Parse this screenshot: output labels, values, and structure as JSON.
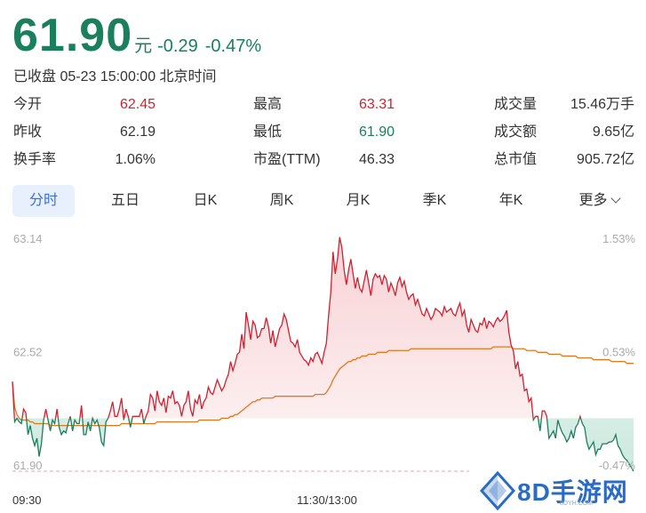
{
  "header": {
    "price": "61.90",
    "unit": "元",
    "change": "-0.29",
    "change_pct": "-0.47%",
    "status": "已收盘 05-23 15:00:00 北京时间"
  },
  "stats": [
    {
      "label": "今开",
      "value": "62.45",
      "color": "red"
    },
    {
      "label": "最高",
      "value": "63.31",
      "color": "red"
    },
    {
      "label": "成交量",
      "value": "15.46万手",
      "color": "neutral"
    },
    {
      "label": "昨收",
      "value": "62.19",
      "color": "neutral"
    },
    {
      "label": "最低",
      "value": "61.90",
      "color": "green"
    },
    {
      "label": "成交额",
      "value": "9.65亿",
      "color": "neutral"
    },
    {
      "label": "换手率",
      "value": "1.06%",
      "color": "neutral"
    },
    {
      "label": "市盈(TTM)",
      "value": "46.33",
      "color": "neutral"
    },
    {
      "label": "总市值",
      "value": "905.72亿",
      "color": "neutral"
    }
  ],
  "tabs": [
    "分时",
    "五日",
    "日K",
    "周K",
    "月K",
    "季K",
    "年K",
    "更多"
  ],
  "active_tab": "分时",
  "watermark": {
    "text": "8D手游网",
    "sub": "8DYH.COM"
  },
  "colors": {
    "up": "#d3202f",
    "down": "#1a7f5a",
    "avg": "#e0781e",
    "tab_active": "#3a6fd8"
  },
  "chart_data": {
    "type": "line",
    "title": "",
    "prev_close": 62.19,
    "ylim": [
      61.9,
      63.14
    ],
    "y_ticks_left": [
      "63.14",
      "62.52",
      "61.90"
    ],
    "y_ticks_right": [
      "1.53%",
      "0.53%",
      "-0.47%"
    ],
    "x_ticks": [
      "09:30",
      "11:30/13:00"
    ],
    "series": [
      {
        "key": "price",
        "values": [
          62.39,
          62.17,
          62.19,
          62.17,
          62.16,
          62.24,
          62.22,
          62.1,
          62.15,
          62.08,
          62.04,
          62.08,
          61.98,
          62.05,
          62.18,
          62.24,
          62.18,
          62.12,
          62.18,
          62.16,
          62.24,
          62.14,
          62.1,
          62.12,
          62.11,
          62.16,
          62.2,
          62.12,
          62.18,
          62.16,
          62.16,
          62.26,
          62.1,
          62.1,
          62.17,
          62.12,
          62.19,
          62.16,
          62.18,
          62.14,
          62.06,
          62.04,
          62.17,
          62.19,
          62.23,
          62.28,
          62.2,
          62.2,
          62.24,
          62.3,
          62.18,
          62.24,
          62.2,
          62.14,
          62.2,
          62.2,
          62.2,
          62.2,
          62.24,
          62.16,
          62.2,
          62.23,
          62.32,
          62.3,
          62.23,
          62.34,
          62.28,
          62.26,
          62.3,
          62.22,
          62.31,
          62.3,
          62.34,
          62.27,
          62.28,
          62.26,
          62.2,
          62.26,
          62.28,
          62.34,
          62.24,
          62.2,
          62.29,
          62.27,
          62.32,
          62.24,
          62.28,
          62.3,
          62.36,
          62.33,
          62.32,
          62.36,
          62.4,
          62.37,
          62.34,
          62.36,
          62.4,
          62.43,
          62.5,
          62.45,
          62.49,
          62.54,
          62.55,
          62.65,
          62.57,
          62.77,
          62.7,
          62.62,
          62.72,
          62.7,
          62.63,
          62.64,
          62.68,
          62.68,
          62.74,
          62.69,
          62.6,
          62.67,
          62.58,
          62.63,
          62.68,
          62.7,
          62.76,
          62.73,
          62.67,
          62.61,
          62.6,
          62.58,
          62.62,
          62.55,
          62.53,
          62.51,
          62.5,
          62.48,
          62.52,
          62.5,
          62.54,
          62.55,
          62.52,
          62.49,
          62.55,
          62.6,
          62.75,
          62.88,
          63.1,
          62.98,
          63.06,
          63.18,
          63.12,
          63.0,
          62.92,
          63.0,
          63.06,
          62.98,
          62.9,
          62.96,
          62.9,
          62.88,
          62.94,
          63.0,
          62.93,
          62.86,
          62.95,
          62.98,
          62.96,
          62.97,
          62.92,
          62.97,
          62.95,
          62.88,
          62.93,
          62.9,
          62.86,
          62.93,
          62.96,
          62.91,
          62.94,
          62.88,
          62.84,
          62.86,
          62.87,
          62.81,
          62.84,
          62.8,
          62.76,
          62.75,
          62.79,
          62.76,
          62.73,
          62.75,
          62.79,
          62.78,
          62.77,
          62.75,
          62.8,
          62.77,
          62.78,
          62.79,
          62.76,
          62.75,
          62.79,
          62.82,
          62.75,
          62.78,
          62.7,
          62.66,
          62.73,
          62.7,
          62.67,
          62.66,
          62.71,
          62.7,
          62.74,
          62.68,
          62.72,
          62.71,
          62.69,
          62.72,
          62.74,
          62.72,
          62.73,
          62.75,
          62.78,
          62.66,
          62.59,
          62.56,
          62.46,
          62.5,
          62.42,
          62.43,
          62.34,
          62.35,
          62.28,
          62.3,
          62.18,
          62.2,
          62.2,
          62.12,
          62.23,
          62.23,
          62.2,
          62.08,
          62.1,
          62.12,
          62.08,
          62.18,
          62.14,
          62.11,
          62.09,
          62.06,
          62.08,
          62.12,
          62.08,
          62.14,
          62.16,
          62.2,
          62.16,
          62.14,
          62.06,
          62.02,
          62.04,
          62.06,
          61.99,
          62.02,
          62.02,
          62.05,
          62.05,
          62.05,
          62.06,
          62.06,
          62.07,
          62.1,
          62.04,
          62.02,
          61.99,
          61.97,
          61.96,
          61.94,
          61.92,
          61.9
        ]
      },
      {
        "key": "average",
        "values": [
          62.39,
          62.25,
          62.21,
          62.19,
          62.18,
          62.18,
          62.18,
          62.18,
          62.17,
          62.17,
          62.16,
          62.16,
          62.16,
          62.16,
          62.16,
          62.16,
          62.16,
          62.15,
          62.15,
          62.15,
          62.15,
          62.15,
          62.15,
          62.15,
          62.15,
          62.15,
          62.15,
          62.15,
          62.15,
          62.15,
          62.15,
          62.15,
          62.15,
          62.15,
          62.15,
          62.15,
          62.15,
          62.15,
          62.15,
          62.15,
          62.15,
          62.15,
          62.15,
          62.15,
          62.15,
          62.15,
          62.15,
          62.15,
          62.15,
          62.16,
          62.16,
          62.16,
          62.16,
          62.16,
          62.16,
          62.16,
          62.16,
          62.16,
          62.16,
          62.16,
          62.16,
          62.16,
          62.16,
          62.16,
          62.16,
          62.17,
          62.17,
          62.17,
          62.17,
          62.17,
          62.17,
          62.17,
          62.17,
          62.17,
          62.17,
          62.17,
          62.17,
          62.17,
          62.17,
          62.17,
          62.17,
          62.17,
          62.17,
          62.17,
          62.18,
          62.18,
          62.18,
          62.18,
          62.18,
          62.18,
          62.18,
          62.18,
          62.18,
          62.18,
          62.19,
          62.19,
          62.19,
          62.19,
          62.2,
          62.2,
          62.21,
          62.21,
          62.22,
          62.23,
          62.24,
          62.25,
          62.26,
          62.27,
          62.28,
          62.28,
          62.29,
          62.29,
          62.3,
          62.3,
          62.3,
          62.3,
          62.3,
          62.3,
          62.31,
          62.31,
          62.31,
          62.31,
          62.31,
          62.31,
          62.31,
          62.31,
          62.31,
          62.31,
          62.31,
          62.31,
          62.31,
          62.31,
          62.31,
          62.31,
          62.31,
          62.31,
          62.32,
          62.32,
          62.32,
          62.32,
          62.32,
          62.33,
          62.35,
          62.37,
          62.4,
          62.42,
          62.44,
          62.46,
          62.47,
          62.48,
          62.49,
          62.5,
          62.5,
          62.51,
          62.51,
          62.52,
          62.52,
          62.53,
          62.53,
          62.53,
          62.54,
          62.54,
          62.54,
          62.54,
          62.55,
          62.55,
          62.55,
          62.55,
          62.55,
          62.56,
          62.56,
          62.56,
          62.56,
          62.56,
          62.56,
          62.56,
          62.56,
          62.56,
          62.56,
          62.57,
          62.57,
          62.57,
          62.57,
          62.57,
          62.57,
          62.57,
          62.57,
          62.57,
          62.57,
          62.57,
          62.57,
          62.57,
          62.57,
          62.57,
          62.57,
          62.57,
          62.57,
          62.57,
          62.57,
          62.57,
          62.57,
          62.57,
          62.57,
          62.57,
          62.57,
          62.57,
          62.57,
          62.57,
          62.57,
          62.57,
          62.57,
          62.57,
          62.57,
          62.57,
          62.57,
          62.57,
          62.58,
          62.58,
          62.58,
          62.58,
          62.58,
          62.58,
          62.58,
          62.58,
          62.58,
          62.57,
          62.57,
          62.57,
          62.57,
          62.57,
          62.57,
          62.56,
          62.56,
          62.56,
          62.56,
          62.56,
          62.55,
          62.55,
          62.55,
          62.55,
          62.55,
          62.54,
          62.54,
          62.54,
          62.54,
          62.54,
          62.54,
          62.53,
          62.53,
          62.53,
          62.53,
          62.53,
          62.53,
          62.53,
          62.52,
          62.52,
          62.52,
          62.52,
          62.52,
          62.52,
          62.52,
          62.51,
          62.51,
          62.51,
          62.51,
          62.51,
          62.51,
          62.51,
          62.51,
          62.5,
          62.5,
          62.5,
          62.5,
          62.5,
          62.5,
          62.5,
          62.49,
          62.49,
          62.49,
          62.49,
          62.49,
          62.48,
          62.48,
          62.48,
          62.47,
          62.47
        ]
      }
    ]
  }
}
